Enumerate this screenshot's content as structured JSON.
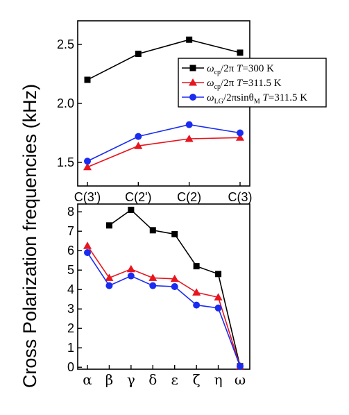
{
  "ylabel": "Cross Polarization frequencies (kHz)",
  "chart_data": [
    {
      "type": "line",
      "categories": [
        "C(3')",
        "C(2')",
        "C(2)",
        "C(3)"
      ],
      "ylim": [
        1.3,
        2.7
      ],
      "yticks": [
        1.5,
        2.0,
        2.5
      ],
      "ytick_labels": [
        "1.5",
        "2.0",
        "2.5"
      ],
      "legend_position": "right",
      "series": [
        {
          "name": "ωcp/2π T=300 K",
          "color": "#000000",
          "marker": "square",
          "values": [
            2.2,
            2.42,
            2.54,
            2.43
          ]
        },
        {
          "name": "ωcp/2π T=311.5 K",
          "color": "#e8141e",
          "marker": "triangle",
          "values": [
            1.46,
            1.64,
            1.7,
            1.71
          ]
        },
        {
          "name": "ωLG/2πsinθM T=311.5 K",
          "color": "#1a2cf0",
          "marker": "circle",
          "values": [
            1.51,
            1.72,
            1.82,
            1.75
          ]
        }
      ]
    },
    {
      "type": "line",
      "categories": [
        "α",
        "β",
        "γ",
        "δ",
        "ε",
        "ζ",
        "η",
        "ω"
      ],
      "ylim": [
        -0.1,
        8.4
      ],
      "yticks": [
        0,
        1,
        2,
        3,
        4,
        5,
        6,
        7,
        8
      ],
      "ytick_labels": [
        "0",
        "1",
        "2",
        "3",
        "4",
        "5",
        "6",
        "7",
        "8"
      ],
      "series": [
        {
          "name": "ωcp/2π T=300 K",
          "color": "#000000",
          "marker": "square",
          "values": [
            null,
            7.3,
            8.1,
            7.05,
            6.85,
            5.2,
            4.8,
            0.05
          ]
        },
        {
          "name": "ωcp/2π T=311.5 K",
          "color": "#e8141e",
          "marker": "triangle",
          "values": [
            6.25,
            4.6,
            5.05,
            4.6,
            4.55,
            3.85,
            3.6,
            0.05
          ]
        },
        {
          "name": "ωLG/2πsinθM T=311.5 K",
          "color": "#1a2cf0",
          "marker": "circle",
          "values": [
            5.9,
            4.2,
            4.7,
            4.2,
            4.15,
            3.2,
            3.05,
            0.05
          ]
        }
      ]
    }
  ],
  "legend": [
    {
      "sym": "ω",
      "sub": "cp",
      "mid": "/2π ",
      "T": "T",
      "rest": "=300 K",
      "extra": "",
      "extra_sub": ""
    },
    {
      "sym": "ω",
      "sub": "cp",
      "mid": "/2π ",
      "T": "T",
      "rest": "=311.5 K",
      "extra": "",
      "extra_sub": ""
    },
    {
      "sym": "ω",
      "sub": "LG",
      "mid": "/2πsinθ",
      "T": "T",
      "rest": "=311.5 K",
      "extra": "M",
      "extra_sub": "M"
    }
  ]
}
